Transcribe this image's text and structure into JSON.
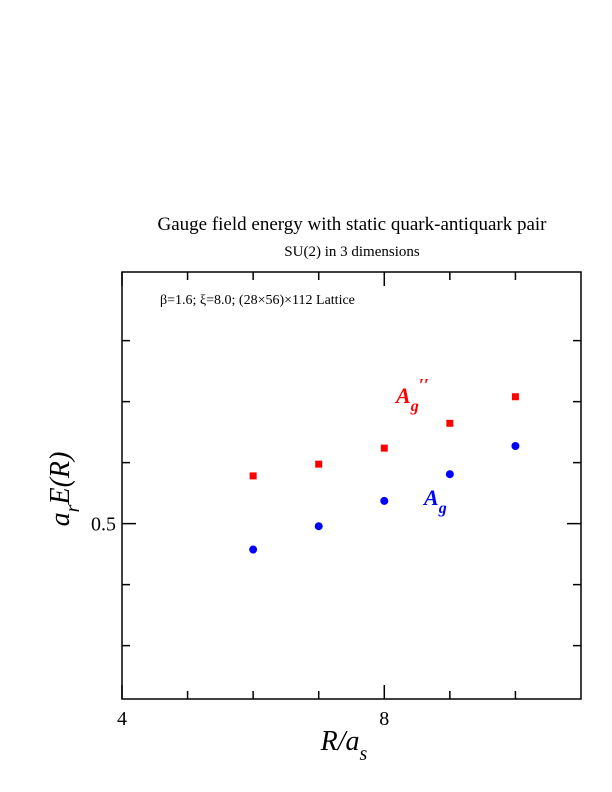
{
  "chart_data": {
    "type": "scatter",
    "title": "Gauge field energy with static quark-antiquark pair",
    "subtitle": "SU(2) in 3 dimensions",
    "annotation": "β=1.6;  ξ=8.0;  (28×56)×112 Lattice",
    "xlabel": {
      "main": "R/a",
      "sub": "s"
    },
    "ylabel": {
      "pre": "a",
      "sub": "r",
      "main": "E(R)"
    },
    "xlim": [
      4,
      11
    ],
    "ylim": [
      0.385,
      0.665
    ],
    "x_ticks": [
      {
        "value": 4,
        "label": "4"
      },
      {
        "value": 8,
        "label": "8"
      }
    ],
    "y_ticks": [
      {
        "value": 0.5,
        "label": "0.5"
      }
    ],
    "x_minor_ticks": [
      5,
      6,
      7,
      9,
      10
    ],
    "y_minor_ticks": [
      0.42,
      0.46,
      0.54,
      0.58,
      0.62
    ],
    "grid": false,
    "series": [
      {
        "name": "A_g''",
        "label_main": "A",
        "label_sub": "g",
        "label_sup": "′′",
        "color": "#ff0000",
        "marker": "square",
        "x": [
          6,
          7,
          8,
          9,
          10
        ],
        "y": [
          0.5313,
          0.539,
          0.5495,
          0.5658,
          0.5832
        ]
      },
      {
        "name": "A_g",
        "label_main": "A",
        "label_sub": "g",
        "label_sup": "",
        "color": "#0000ff",
        "marker": "circle",
        "x": [
          6,
          7,
          8,
          9,
          10
        ],
        "y": [
          0.483,
          0.4983,
          0.5149,
          0.5324,
          0.5509
        ]
      }
    ]
  }
}
